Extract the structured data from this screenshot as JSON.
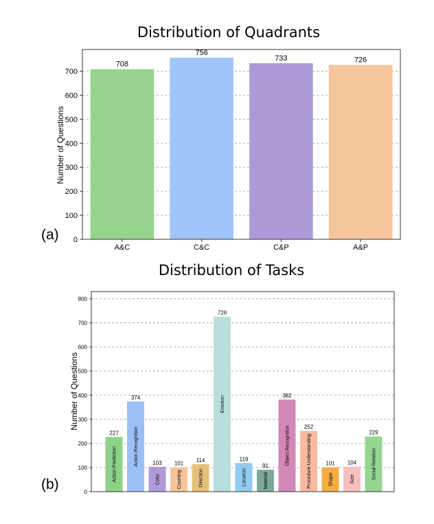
{
  "panel_labels": [
    "(a)",
    "(b)"
  ],
  "chart_data": [
    {
      "type": "bar",
      "title": "Distribution of Quadrants",
      "xlabel": "",
      "ylabel": "Number of Questions",
      "categories": [
        "A&C",
        "C&C",
        "C&P",
        "A&P"
      ],
      "values": [
        708,
        756,
        733,
        726
      ],
      "colors": [
        "#98d38e",
        "#a1c4fd",
        "#af9ad9",
        "#f7c59b"
      ],
      "ylim": [
        0,
        790
      ],
      "yticks": [
        0,
        100,
        200,
        300,
        400,
        500,
        600,
        700
      ],
      "grid": true,
      "legend": "none"
    },
    {
      "type": "bar",
      "title": "Distribution of Tasks",
      "xlabel": "",
      "ylabel": "Number of Questions",
      "categories": [
        "Action Prediction",
        "Action Recognition",
        "Color",
        "Counting",
        "Direction",
        "Emotion",
        "Location",
        "Material",
        "Object Recognition",
        "Procedure Understanding",
        "Shape",
        "Size",
        "Social Relation"
      ],
      "values": [
        227,
        374,
        103,
        101,
        114,
        726,
        119,
        91,
        382,
        252,
        101,
        104,
        229
      ],
      "colors": [
        "#8ed28a",
        "#9dbff8",
        "#b09ad8",
        "#f6c49a",
        "#e6c07a",
        "#b9dcdc",
        "#92cbf0",
        "#7da899",
        "#d488b8",
        "#f8b9a0",
        "#f5ac42",
        "#f6c0be",
        "#94d690"
      ],
      "ylim": [
        0,
        830
      ],
      "yticks": [
        0,
        100,
        200,
        300,
        400,
        500,
        600,
        700,
        800
      ],
      "grid": true,
      "legend": "none"
    }
  ]
}
